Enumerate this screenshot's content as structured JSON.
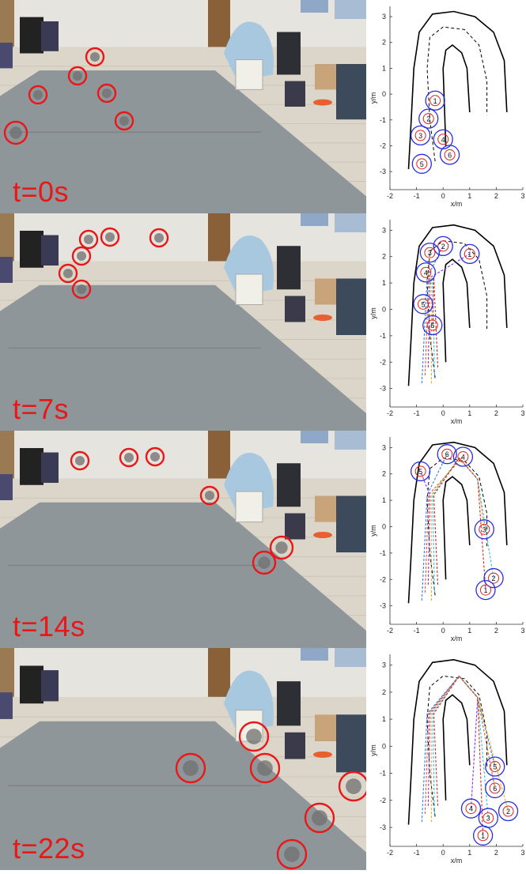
{
  "frames": [
    {
      "time_label": "t=0s",
      "drones": [
        [
          120,
          72
        ],
        [
          98,
          96
        ],
        [
          48,
          120
        ],
        [
          135,
          118
        ],
        [
          157,
          153
        ],
        [
          20,
          168
        ]
      ],
      "robots": [
        {
          "id": "1",
          "x": -0.3,
          "y": -0.25
        },
        {
          "id": "2",
          "x": -0.55,
          "y": -0.95
        },
        {
          "id": "3",
          "x": -0.85,
          "y": -1.6
        },
        {
          "id": "4",
          "x": 0,
          "y": -1.75
        },
        {
          "id": "6",
          "x": 0.25,
          "y": -2.35
        },
        {
          "id": "5",
          "x": -0.8,
          "y": -2.7
        }
      ],
      "trails": false
    },
    {
      "time_label": "t=7s",
      "drones": [
        [
          112,
          303
        ],
        [
          139,
          300
        ],
        [
          201,
          301
        ],
        [
          103,
          324
        ],
        [
          86,
          346
        ],
        [
          103,
          366
        ]
      ],
      "robots": [
        {
          "id": "2",
          "x": 0,
          "y": 2.4
        },
        {
          "id": "3",
          "x": -0.5,
          "y": 2.15
        },
        {
          "id": "1",
          "x": 1.0,
          "y": 2.1
        },
        {
          "id": "4",
          "x": -0.65,
          "y": 1.4
        },
        {
          "id": "5",
          "x": -0.75,
          "y": 0.2
        },
        {
          "id": "6",
          "x": -0.4,
          "y": -0.6
        }
      ],
      "trails": true
    },
    {
      "time_label": "t=14s",
      "drones": [
        [
          101,
          583
        ],
        [
          163,
          579
        ],
        [
          196,
          578
        ],
        [
          265,
          627
        ],
        [
          356,
          693
        ],
        [
          334,
          712
        ]
      ],
      "robots": [
        {
          "id": "6",
          "x": 0.15,
          "y": 2.75
        },
        {
          "id": "4",
          "x": 0.75,
          "y": 2.65
        },
        {
          "id": "5",
          "x": -0.85,
          "y": 2.1
        },
        {
          "id": "3",
          "x": 1.55,
          "y": -0.1
        },
        {
          "id": "2",
          "x": 1.9,
          "y": -1.95
        },
        {
          "id": "1",
          "x": 1.6,
          "y": -2.4
        }
      ],
      "trails": true
    },
    {
      "time_label": "t=22s",
      "drones": [
        [
          321,
          932
        ],
        [
          241,
          972
        ],
        [
          335,
          972
        ],
        [
          447,
          995
        ],
        [
          404,
          1035
        ],
        [
          369,
          1081
        ]
      ],
      "robots": [
        {
          "id": "5",
          "x": 1.95,
          "y": -0.75
        },
        {
          "id": "6",
          "x": 1.95,
          "y": -1.55
        },
        {
          "id": "4",
          "x": 1.05,
          "y": -2.3
        },
        {
          "id": "2",
          "x": 2.45,
          "y": -2.4
        },
        {
          "id": "3",
          "x": 1.7,
          "y": -2.65
        },
        {
          "id": "1",
          "x": 1.5,
          "y": -3.3
        }
      ],
      "trails": true
    }
  ],
  "plot": {
    "xlabel": "x/m",
    "ylabel": "y/m",
    "xticks": [
      "-2",
      "-1",
      "0",
      "1",
      "2",
      "3"
    ],
    "yticks": [
      "3",
      "2",
      "1",
      "0",
      "-1",
      "-2",
      "-3"
    ],
    "xlim": [
      -2,
      3
    ],
    "ylim": [
      -3.7,
      3.4
    ]
  },
  "colors": {
    "label_red": "#e81818",
    "marker_blue": "#2a2ee0",
    "marker_inner_red": "#e02020",
    "trail_colors": [
      "#2e7df0",
      "#e05a1a",
      "#8a2be2",
      "#e8b020",
      "#30c0e0",
      "#d42a2a"
    ]
  }
}
